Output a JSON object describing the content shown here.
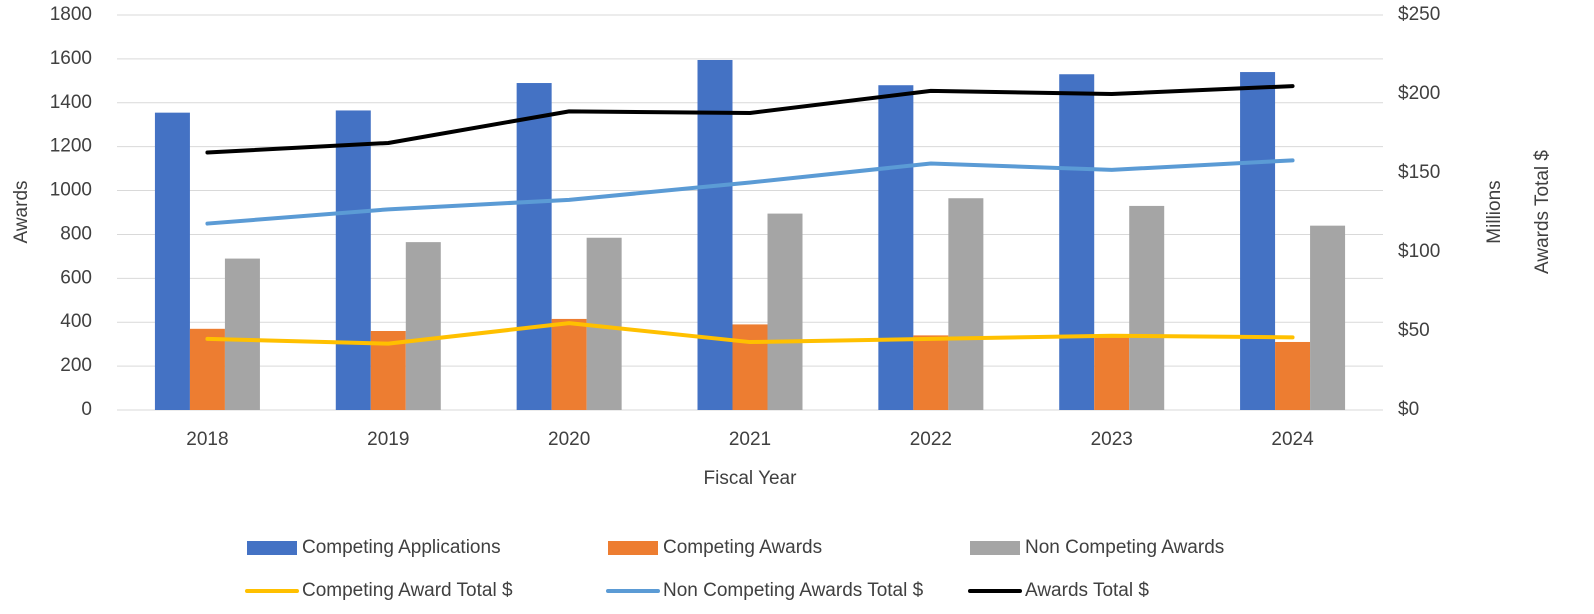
{
  "chart_data": {
    "type": "combo",
    "x_axis_label": "Fiscal Year",
    "y_axis_label": "Awards",
    "y2_axis_label": "Awards Total $",
    "y2_display_units": "Millions",
    "categories": [
      "2018",
      "2019",
      "2020",
      "2021",
      "2022",
      "2023",
      "2024"
    ],
    "series": [
      {
        "name": "Competing Applications",
        "type": "bar",
        "color": "#4472c4",
        "values": [
          1355,
          1365,
          1490,
          1595,
          1480,
          1530,
          1540
        ]
      },
      {
        "name": "Competing Awards",
        "type": "bar",
        "color": "#ed7d31",
        "values": [
          370,
          360,
          415,
          390,
          340,
          330,
          310
        ]
      },
      {
        "name": "Non Competing Awards",
        "type": "bar",
        "color": "#a5a5a5",
        "values": [
          690,
          765,
          785,
          895,
          965,
          930,
          840
        ]
      },
      {
        "name": "Competing Award Total $",
        "type": "line",
        "axis": "y2",
        "color": "#ffc000",
        "values": [
          45,
          42,
          55,
          43,
          45,
          47,
          46
        ]
      },
      {
        "name": "Non Competing Awards Total $",
        "type": "line",
        "axis": "y2",
        "color": "#5b9bd5",
        "values": [
          118,
          127,
          133,
          144,
          156,
          152,
          158
        ]
      },
      {
        "name": "Awards Total $",
        "type": "line",
        "axis": "y2",
        "color": "#000000",
        "values": [
          163,
          169,
          189,
          188,
          202,
          200,
          205
        ]
      }
    ],
    "ylim": [
      0,
      1800
    ],
    "yticks": [
      0,
      200,
      400,
      600,
      800,
      1000,
      1200,
      1400,
      1600,
      1800
    ],
    "y2lim": [
      0,
      250
    ],
    "y2ticks": [
      {
        "value": 0,
        "label": "$0"
      },
      {
        "value": 50,
        "label": "$50"
      },
      {
        "value": 100,
        "label": "$100"
      },
      {
        "value": 150,
        "label": "$150"
      },
      {
        "value": 200,
        "label": "$200"
      },
      {
        "value": 250,
        "label": "$250"
      }
    ],
    "grid": true,
    "legend": "bottom"
  }
}
